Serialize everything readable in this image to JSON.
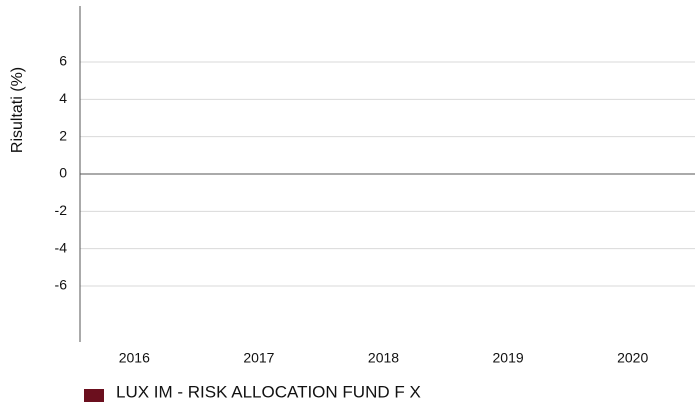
{
  "chart_data": {
    "type": "bar",
    "y_label": "Risultati (%)",
    "categories": [
      "2016",
      "2017",
      "2018",
      "2019",
      "2020"
    ],
    "series": [
      {
        "name": "LUX IM - RISK ALLOCATION FUND F X",
        "color": "#6b0f1e",
        "values": [
          null,
          null,
          null,
          null,
          null
        ]
      }
    ],
    "ylim": [
      -9,
      9
    ],
    "yticks": [
      6,
      4,
      2,
      0,
      -2,
      -4,
      -6
    ],
    "grid": true,
    "legend": "bottom-left"
  }
}
